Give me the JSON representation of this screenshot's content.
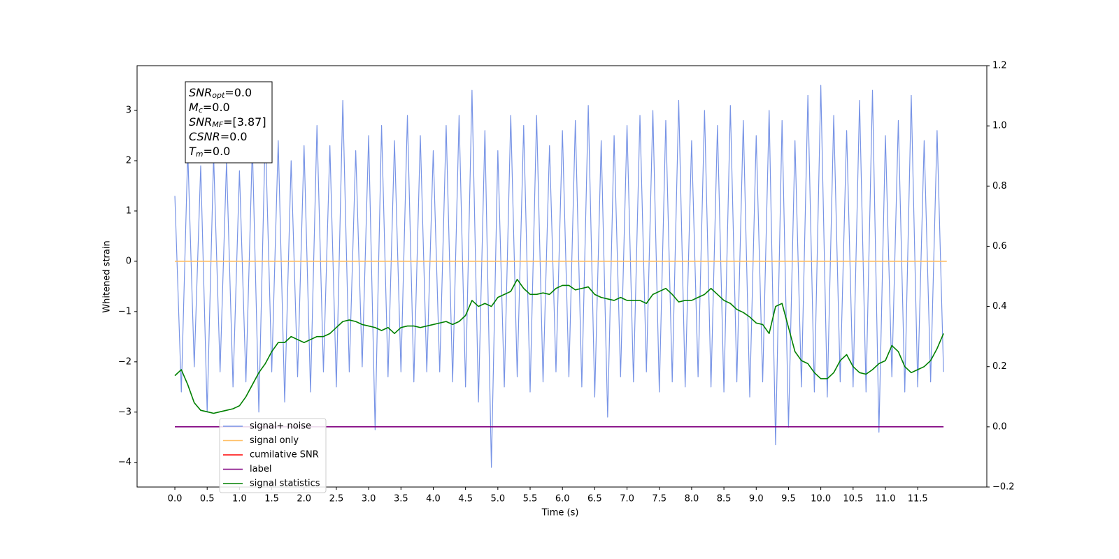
{
  "chart_data": {
    "type": "line",
    "xlabel": "Time (s)",
    "ylabel": "Whitened strain",
    "xlim": [
      -0.585,
      12.57
    ],
    "ylim": [
      -4.49,
      3.89
    ],
    "y2lim": [
      -0.2,
      1.2
    ],
    "xticks": [
      {
        "value": 0,
        "label": "0.0"
      },
      {
        "value": 0.5,
        "label": "0.5"
      },
      {
        "value": 1,
        "label": "1.0"
      },
      {
        "value": 1.5,
        "label": "1.5"
      },
      {
        "value": 2,
        "label": "2.0"
      },
      {
        "value": 2.5,
        "label": "2.5"
      },
      {
        "value": 3,
        "label": "3.0"
      },
      {
        "value": 3.5,
        "label": "3.5"
      },
      {
        "value": 4,
        "label": "4.0"
      },
      {
        "value": 4.5,
        "label": "4.5"
      },
      {
        "value": 5,
        "label": "5.0"
      },
      {
        "value": 5.5,
        "label": "5.5"
      },
      {
        "value": 6,
        "label": "6.0"
      },
      {
        "value": 6.5,
        "label": "6.5"
      },
      {
        "value": 7,
        "label": "7.0"
      },
      {
        "value": 7.5,
        "label": "7.5"
      },
      {
        "value": 8,
        "label": "8.0"
      },
      {
        "value": 8.5,
        "label": "8.5"
      },
      {
        "value": 9,
        "label": "9.0"
      },
      {
        "value": 9.5,
        "label": "9.5"
      },
      {
        "value": 10,
        "label": "10.0"
      },
      {
        "value": 10.5,
        "label": "10.5"
      },
      {
        "value": 11,
        "label": "11.0"
      },
      {
        "value": 11.5,
        "label": "11.5"
      }
    ],
    "yticks": [
      {
        "value": -4,
        "label": "−4"
      },
      {
        "value": -3,
        "label": "−3"
      },
      {
        "value": -2,
        "label": "−2"
      },
      {
        "value": -1,
        "label": "−1"
      },
      0,
      1,
      2,
      3
    ],
    "y2ticks": [
      {
        "value": -0.2,
        "label": "−0.2"
      },
      {
        "value": 0,
        "label": "0.0"
      },
      0.2,
      0.4,
      0.6,
      0.8,
      {
        "value": 1,
        "label": "1.0"
      },
      1.2
    ],
    "legend": "lower left",
    "annotation": [
      {
        "name": "SNR",
        "sub": "opt",
        "text": "=0.0"
      },
      {
        "name": "M",
        "sub": "c",
        "text": "=0.0"
      },
      {
        "name": "SNR",
        "sub": "MF",
        "text": "=[3.87]"
      },
      {
        "name": "CSNR",
        "sub": "",
        "text": "=0.0"
      },
      {
        "name": "T",
        "sub": "m",
        "text": "=0.0"
      }
    ],
    "x": [
      0,
      0.1,
      0.2,
      0.3,
      0.4,
      0.5,
      0.6,
      0.7,
      0.8,
      0.9,
      1,
      1.1,
      1.2,
      1.3,
      1.4,
      1.5,
      1.6,
      1.7,
      1.8,
      1.9,
      2,
      2.1,
      2.2,
      2.3,
      2.4,
      2.5,
      2.6,
      2.7,
      2.8,
      2.9,
      3,
      3.1,
      3.2,
      3.3,
      3.4,
      3.5,
      3.6,
      3.7,
      3.8,
      3.9,
      4,
      4.1,
      4.2,
      4.3,
      4.4,
      4.5,
      4.6,
      4.7,
      4.8,
      4.9,
      5,
      5.1,
      5.2,
      5.3,
      5.4,
      5.5,
      5.6,
      5.7,
      5.8,
      5.9,
      6,
      6.1,
      6.2,
      6.3,
      6.4,
      6.5,
      6.6,
      6.7,
      6.8,
      6.9,
      7,
      7.1,
      7.2,
      7.3,
      7.4,
      7.5,
      7.6,
      7.7,
      7.8,
      7.9,
      8,
      8.1,
      8.2,
      8.3,
      8.4,
      8.5,
      8.6,
      8.7,
      8.8,
      8.9,
      9,
      9.1,
      9.2,
      9.3,
      9.4,
      9.5,
      9.6,
      9.7,
      9.8,
      9.9,
      10,
      10.1,
      10.2,
      10.3,
      10.4,
      10.5,
      10.6,
      10.7,
      10.8,
      10.9,
      11,
      11.1,
      11.2,
      11.3,
      11.4,
      11.5,
      11.6,
      11.7,
      11.8,
      11.9
    ],
    "series": [
      {
        "name": "signal+ noise",
        "color": "#7894e6",
        "values": [
          1.3,
          -2.6,
          2.2,
          -2.1,
          1.9,
          -3.0,
          2.1,
          -2.2,
          2.0,
          -2.5,
          1.8,
          -2.4,
          2.3,
          -3.0,
          2.6,
          -2.2,
          2.4,
          -2.8,
          2.0,
          -2.3,
          2.3,
          -2.6,
          2.7,
          -2.2,
          2.3,
          -2.5,
          3.2,
          -2.2,
          2.2,
          -2.1,
          2.5,
          -3.35,
          2.7,
          -2.3,
          2.4,
          -2.2,
          2.9,
          -2.4,
          2.5,
          -2.2,
          2.2,
          -2.2,
          2.7,
          -2.4,
          2.9,
          -2.5,
          3.4,
          -2.8,
          2.6,
          -4.1,
          2.2,
          -2.5,
          2.9,
          -2.3,
          2.7,
          -2.6,
          2.9,
          -2.4,
          2.3,
          -2.2,
          2.6,
          -2.3,
          2.8,
          -2.5,
          3.1,
          -2.7,
          2.4,
          -3.1,
          2.5,
          -2.3,
          2.7,
          -2.4,
          2.9,
          -2.2,
          3.0,
          -2.6,
          2.8,
          -2.4,
          3.2,
          -2.5,
          2.4,
          -2.3,
          3.0,
          -2.5,
          2.7,
          -2.6,
          3.1,
          -2.4,
          2.8,
          -2.7,
          2.5,
          -2.4,
          3.0,
          -3.65,
          2.8,
          -3.3,
          2.4,
          -2.5,
          3.3,
          -2.6,
          3.5,
          -2.7,
          2.9,
          -2.4,
          2.6,
          -2.5,
          3.2,
          -2.6,
          3.4,
          -3.4,
          2.5,
          -2.3,
          2.8,
          -2.6,
          3.3,
          -2.5,
          2.4,
          -2.4,
          2.6,
          -2.2
        ]
      },
      {
        "name": "signal only",
        "color": "#ffbf66",
        "x": [
          0,
          11.95
        ],
        "values": [
          0,
          0
        ]
      },
      {
        "name": "cumilative SNR",
        "color": "#ff0000",
        "x": [],
        "values": []
      },
      {
        "name": "label",
        "color": "#800080",
        "axis": "y2",
        "x": [
          0,
          11.9
        ],
        "values": [
          0,
          0
        ]
      },
      {
        "name": "signal statistics",
        "color": "#008000",
        "axis": "y2",
        "values": [
          0.17,
          0.19,
          0.14,
          0.08,
          0.055,
          0.05,
          0.045,
          0.05,
          0.055,
          0.06,
          0.07,
          0.1,
          0.14,
          0.18,
          0.21,
          0.25,
          0.28,
          0.28,
          0.3,
          0.29,
          0.28,
          0.29,
          0.3,
          0.3,
          0.31,
          0.33,
          0.35,
          0.355,
          0.35,
          0.34,
          0.335,
          0.33,
          0.32,
          0.33,
          0.31,
          0.33,
          0.335,
          0.335,
          0.33,
          0.335,
          0.34,
          0.345,
          0.35,
          0.34,
          0.35,
          0.37,
          0.42,
          0.4,
          0.41,
          0.4,
          0.43,
          0.44,
          0.45,
          0.49,
          0.46,
          0.44,
          0.44,
          0.445,
          0.44,
          0.46,
          0.47,
          0.47,
          0.455,
          0.46,
          0.465,
          0.44,
          0.43,
          0.425,
          0.42,
          0.43,
          0.42,
          0.42,
          0.42,
          0.41,
          0.44,
          0.45,
          0.46,
          0.44,
          0.415,
          0.42,
          0.42,
          0.43,
          0.44,
          0.46,
          0.44,
          0.42,
          0.41,
          0.39,
          0.38,
          0.365,
          0.345,
          0.34,
          0.31,
          0.4,
          0.41,
          0.33,
          0.25,
          0.22,
          0.21,
          0.18,
          0.16,
          0.16,
          0.18,
          0.22,
          0.24,
          0.2,
          0.18,
          0.175,
          0.19,
          0.21,
          0.22,
          0.27,
          0.25,
          0.2,
          0.18,
          0.19,
          0.2,
          0.22,
          0.26,
          0.31
        ]
      }
    ]
  }
}
